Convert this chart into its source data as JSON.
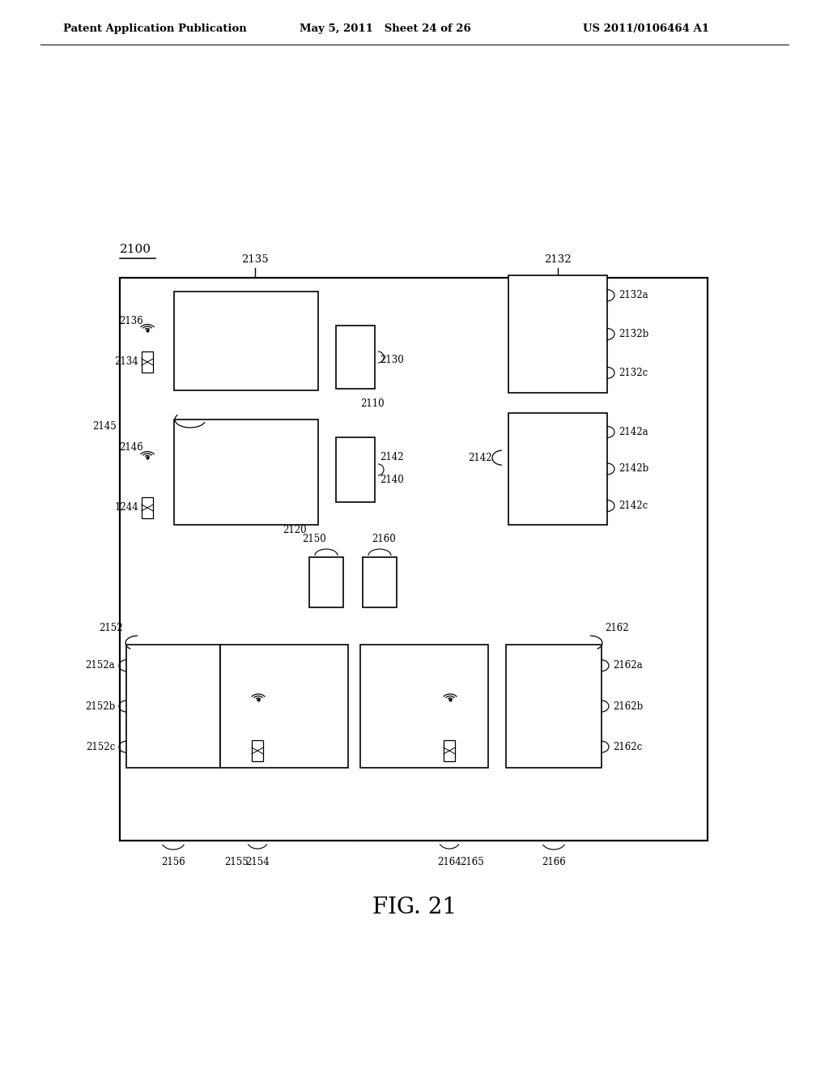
{
  "bg_color": "#ffffff",
  "header_left": "Patent Application Publication",
  "header_mid": "May 5, 2011   Sheet 24 of 26",
  "header_right": "US 2011/0106464 A1",
  "figure_label": "FIG. 21"
}
